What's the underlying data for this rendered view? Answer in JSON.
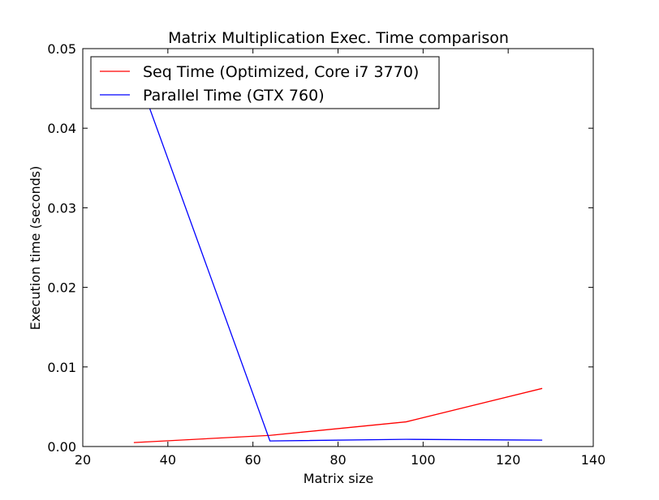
{
  "chart_data": {
    "type": "line",
    "title": "Matrix Multiplication Exec. Time comparison",
    "xlabel": "Matrix size",
    "ylabel": "Execution time (seconds)",
    "xlim": [
      20,
      140
    ],
    "ylim": [
      0.0,
      0.05
    ],
    "xticks": [
      "20",
      "40",
      "60",
      "80",
      "100",
      "120",
      "140"
    ],
    "yticks": [
      "0.00",
      "0.01",
      "0.02",
      "0.03",
      "0.04",
      "0.05"
    ],
    "grid": false,
    "legend_position": "top-left",
    "series": [
      {
        "name": "Seq Time (Optimized, Core i7 3770)",
        "color": "#ff0000",
        "x": [
          32,
          64,
          96,
          128
        ],
        "y": [
          0.0005,
          0.0014,
          0.0031,
          0.0073
        ]
      },
      {
        "name": "Parallel Time (GTX 760)",
        "color": "#0000ff",
        "x": [
          32,
          64,
          96,
          128
        ],
        "y": [
          0.048,
          0.0007,
          0.0009,
          0.0008
        ]
      }
    ]
  }
}
